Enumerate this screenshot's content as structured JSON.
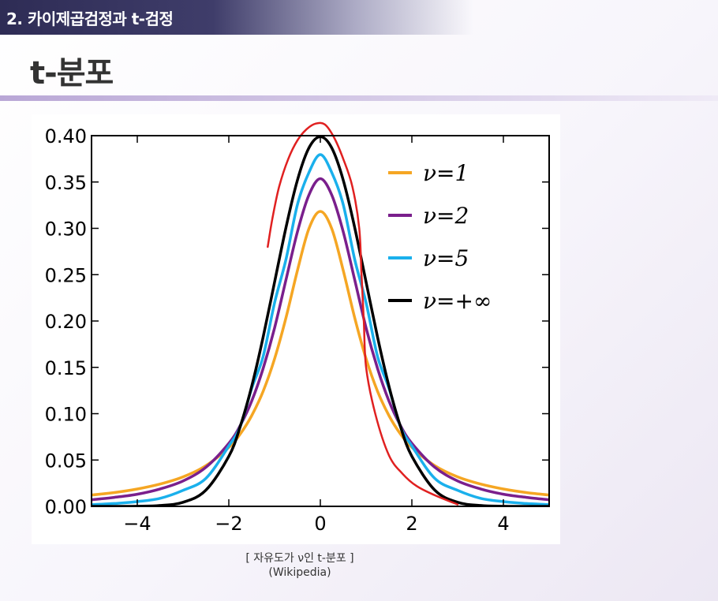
{
  "header": {
    "section_label": "2. 카이제곱검정과 t-검정",
    "title": "t-분포"
  },
  "caption": {
    "line1": "[ 자유도가 ν인 t-분포 ]",
    "line2": "(Wikipedia)"
  },
  "colors": {
    "nu1": "#f5a623",
    "nu2": "#7a1f8c",
    "nu5": "#1ab0ec",
    "nuinf": "#000000",
    "annotation": "#e02020"
  },
  "chart_data": {
    "type": "line",
    "title": "",
    "xlabel": "",
    "ylabel": "",
    "xlim": [
      -5,
      5
    ],
    "ylim": [
      0,
      0.4
    ],
    "xticks": [
      -4,
      -2,
      0,
      2,
      4
    ],
    "xtick_labels": [
      "−4",
      "−2",
      "0",
      "2",
      "4"
    ],
    "yticks": [
      0,
      0.05,
      0.1,
      0.15,
      0.2,
      0.25,
      0.3,
      0.35,
      0.4
    ],
    "ytick_labels": [
      "0.00",
      "0.05",
      "0.10",
      "0.15",
      "0.20",
      "0.25",
      "0.30",
      "0.35",
      "0.40"
    ],
    "grid": false,
    "legend_position": "top-right",
    "x": [
      -5,
      -4.5,
      -4,
      -3.5,
      -3,
      -2.5,
      -2,
      -1.75,
      -1.5,
      -1.25,
      -1,
      -0.75,
      -0.5,
      -0.25,
      0,
      0.25,
      0.5,
      0.75,
      1,
      1.25,
      1.5,
      1.75,
      2,
      2.5,
      3,
      3.5,
      4,
      4.5,
      5
    ],
    "series": [
      {
        "name": "ν=1",
        "values": [
          0.0122,
          0.0149,
          0.0187,
          0.0241,
          0.0318,
          0.0439,
          0.0637,
          0.0781,
          0.0979,
          0.1242,
          0.1592,
          0.2037,
          0.2546,
          0.2996,
          0.3183,
          0.2996,
          0.2546,
          0.2037,
          0.1592,
          0.1242,
          0.0979,
          0.0781,
          0.0637,
          0.0439,
          0.0318,
          0.0241,
          0.0187,
          0.0149,
          0.0122
        ]
      },
      {
        "name": "ν=2",
        "values": [
          0.0071,
          0.0097,
          0.0131,
          0.0188,
          0.0274,
          0.0422,
          0.068,
          0.0873,
          0.1136,
          0.1488,
          0.1925,
          0.2447,
          0.2963,
          0.3359,
          0.3536,
          0.3359,
          0.2963,
          0.2447,
          0.1925,
          0.1488,
          0.1136,
          0.0873,
          0.068,
          0.0422,
          0.0274,
          0.0188,
          0.0131,
          0.0097,
          0.0071
        ]
      },
      {
        "name": "ν=5",
        "values": [
          0.0018,
          0.0031,
          0.0051,
          0.0087,
          0.0173,
          0.0302,
          0.0651,
          0.0862,
          0.1274,
          0.1618,
          0.2197,
          0.2666,
          0.3257,
          0.3602,
          0.3796,
          0.3602,
          0.3257,
          0.2666,
          0.2197,
          0.1618,
          0.1274,
          0.0862,
          0.0651,
          0.0302,
          0.0173,
          0.0087,
          0.0051,
          0.0031,
          0.0018
        ]
      },
      {
        "name": "ν=+∞",
        "values": [
          0.0,
          0.0,
          0.0001,
          0.0009,
          0.0044,
          0.0175,
          0.054,
          0.0863,
          0.1295,
          0.1826,
          0.242,
          0.3011,
          0.3521,
          0.3867,
          0.3989,
          0.3867,
          0.3521,
          0.3011,
          0.242,
          0.1826,
          0.1295,
          0.0863,
          0.054,
          0.0175,
          0.0044,
          0.0009,
          0.0001,
          0.0,
          0.0
        ]
      }
    ],
    "annotation_stroke": {
      "x": [
        -1.15,
        -1.05,
        -0.9,
        -0.7,
        -0.5,
        -0.3,
        -0.1,
        0.1,
        0.3,
        0.5,
        0.7,
        0.85,
        0.9,
        0.95,
        1.0,
        1.2,
        1.5,
        1.8,
        2.1,
        2.5,
        3.0
      ],
      "values": [
        0.28,
        0.31,
        0.345,
        0.375,
        0.395,
        0.407,
        0.413,
        0.412,
        0.398,
        0.375,
        0.345,
        0.3,
        0.25,
        0.2,
        0.15,
        0.1,
        0.055,
        0.035,
        0.022,
        0.012,
        0.002
      ]
    }
  }
}
